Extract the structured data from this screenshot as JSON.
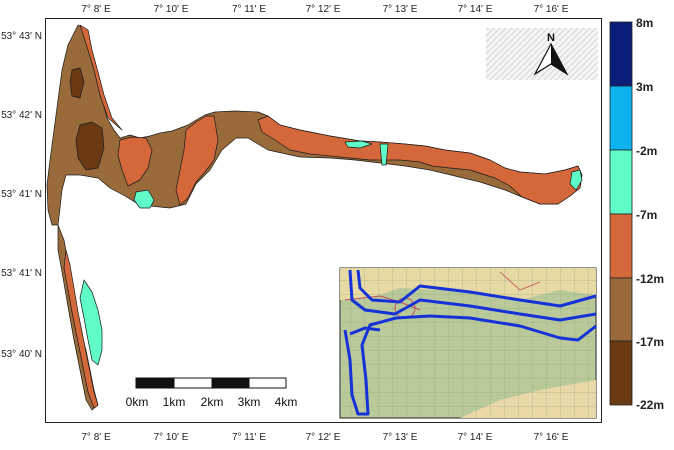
{
  "map": {
    "lon_labels_top": [
      "7° 8' E",
      "7° 10' E",
      "7° 11' E",
      "7° 12' E",
      "7° 13' E",
      "7° 14' E",
      "7° 16' E"
    ],
    "lon_labels_bottom": [
      "7° 8' E",
      "7° 10' E",
      "7° 11' E",
      "7° 12' E",
      "7° 13' E",
      "7° 14' E",
      "7° 16' E"
    ],
    "lat_labels": [
      "53° 43' N",
      "53° 42' N",
      "53° 41' N",
      "53° 41' N",
      "53° 40' N"
    ],
    "north_label": "N",
    "scale_labels": [
      "0km",
      "1km",
      "2km",
      "3km",
      "4km"
    ]
  },
  "legend": {
    "labels": [
      "8m",
      "3m",
      "-2m",
      "-7m",
      "-12m",
      "-17m",
      "-22m"
    ],
    "colors": [
      "#0b1f7a",
      "#0cb3ee",
      "#5ffbc8",
      "#d5683a",
      "#9a6b3a",
      "#6a3a12"
    ]
  },
  "colors": {
    "brown": "#9a6b3a",
    "orange": "#d5683a",
    "dark_brown": "#6a3a12",
    "cyan": "#5ffbc8",
    "inset_outline": "#1532d8"
  }
}
